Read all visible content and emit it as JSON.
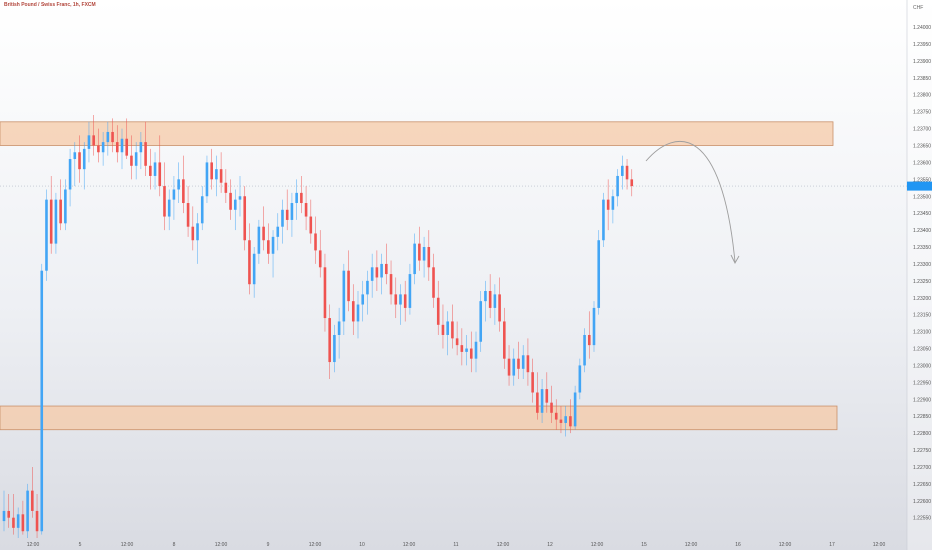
{
  "header": {
    "title": "British Pound / Swiss Franc, 1h, FXCM"
  },
  "chart_data": {
    "type": "candlestick",
    "title": "British Pound / Swiss Franc, 1h, FXCM",
    "currency": "CHF",
    "ylim": [
      1.2249,
      1.2408
    ],
    "y_ticks": [
      1.24,
      1.2395,
      1.239,
      1.2385,
      1.238,
      1.2375,
      1.237,
      1.2365,
      1.236,
      1.2355,
      1.235,
      1.2345,
      1.234,
      1.2335,
      1.233,
      1.2325,
      1.232,
      1.2315,
      1.231,
      1.2305,
      1.23,
      1.2295,
      1.229,
      1.2285,
      1.228,
      1.2275,
      1.227,
      1.2265,
      1.226,
      1.2255,
      1.225
    ],
    "y_tick_labels": [
      "1.24000",
      "1.23950",
      "1.23900",
      "1.23850",
      "1.23800",
      "1.23750",
      "1.23700",
      "1.23650",
      "1.23600",
      "1.23550",
      "1.23500",
      "1.23450",
      "1.23400",
      "1.23350",
      "1.23300",
      "1.23250",
      "1.23200",
      "1.23150",
      "1.23100",
      "1.23050",
      "1.23000",
      "1.22950",
      "1.22900",
      "1.22850",
      "1.22800",
      "1.22750",
      "1.22700",
      "1.22650",
      "1.22600",
      "1.22550",
      "1.22500"
    ],
    "x_labels": [
      "12:00",
      "5",
      "12:00",
      "8",
      "12:00",
      "9",
      "12:00",
      "10",
      "12:00",
      "11",
      "12:00",
      "12",
      "12:00",
      "15",
      "12:00",
      "16",
      "12:00",
      "17",
      "12:00"
    ],
    "current_price": 1.2353,
    "resistance_zone": [
      1.2365,
      1.2372
    ],
    "support_zone": [
      1.2281,
      1.2288
    ],
    "projection": "down",
    "colors": {
      "up": "#42a5f5",
      "down": "#ef5350",
      "zone_fill": "#f6c9a7",
      "zone_border": "#c9906a",
      "price_tag": "#2196f3",
      "projection": "#9e9e9e"
    },
    "candles": [
      [
        1.2254,
        1.2263,
        1.2251,
        1.2257
      ],
      [
        1.2257,
        1.2262,
        1.2252,
        1.2255
      ],
      [
        1.2255,
        1.2262,
        1.225,
        1.2252
      ],
      [
        1.2252,
        1.2258,
        1.2249,
        1.2256
      ],
      [
        1.2256,
        1.226,
        1.225,
        1.2251
      ],
      [
        1.2251,
        1.2265,
        1.2249,
        1.2263
      ],
      [
        1.2263,
        1.227,
        1.2255,
        1.2257
      ],
      [
        1.2257,
        1.2262,
        1.2249,
        1.2251
      ],
      [
        1.2251,
        1.233,
        1.225,
        1.2328
      ],
      [
        1.2328,
        1.2352,
        1.2325,
        1.2349
      ],
      [
        1.2349,
        1.2356,
        1.2333,
        1.2336
      ],
      [
        1.2336,
        1.2351,
        1.2333,
        1.2349
      ],
      [
        1.2349,
        1.2355,
        1.234,
        1.2342
      ],
      [
        1.2342,
        1.2355,
        1.234,
        1.2352
      ],
      [
        1.2352,
        1.2364,
        1.2347,
        1.2361
      ],
      [
        1.2361,
        1.2366,
        1.2353,
        1.2363
      ],
      [
        1.2363,
        1.2368,
        1.2354,
        1.2358
      ],
      [
        1.2358,
        1.2366,
        1.2352,
        1.2364
      ],
      [
        1.2364,
        1.2372,
        1.236,
        1.2368
      ],
      [
        1.2368,
        1.2374,
        1.2362,
        1.2365
      ],
      [
        1.2365,
        1.237,
        1.236,
        1.2363
      ],
      [
        1.2363,
        1.2369,
        1.2359,
        1.2366
      ],
      [
        1.2366,
        1.2372,
        1.2362,
        1.2369
      ],
      [
        1.2369,
        1.2373,
        1.2363,
        1.2366
      ],
      [
        1.2366,
        1.2371,
        1.236,
        1.2363
      ],
      [
        1.2363,
        1.237,
        1.2358,
        1.2367
      ],
      [
        1.2367,
        1.2373,
        1.2361,
        1.2362
      ],
      [
        1.2362,
        1.2368,
        1.2355,
        1.2359
      ],
      [
        1.2359,
        1.2366,
        1.2355,
        1.2363
      ],
      [
        1.2363,
        1.2369,
        1.2358,
        1.2366
      ],
      [
        1.2366,
        1.2372,
        1.2356,
        1.2359
      ],
      [
        1.2359,
        1.2364,
        1.2352,
        1.2356
      ],
      [
        1.2356,
        1.2363,
        1.2352,
        1.236
      ],
      [
        1.236,
        1.2368,
        1.235,
        1.2353
      ],
      [
        1.2353,
        1.236,
        1.234,
        1.2344
      ],
      [
        1.2344,
        1.2352,
        1.234,
        1.2349
      ],
      [
        1.2349,
        1.2356,
        1.2343,
        1.2352
      ],
      [
        1.2352,
        1.236,
        1.2348,
        1.2355
      ],
      [
        1.2355,
        1.2362,
        1.2345,
        1.2348
      ],
      [
        1.2348,
        1.2353,
        1.2338,
        1.2341
      ],
      [
        1.2341,
        1.2347,
        1.2334,
        1.2337
      ],
      [
        1.2337,
        1.2345,
        1.233,
        1.2342
      ],
      [
        1.2342,
        1.2353,
        1.234,
        1.235
      ],
      [
        1.235,
        1.2362,
        1.2348,
        1.236
      ],
      [
        1.236,
        1.2364,
        1.2352,
        1.2355
      ],
      [
        1.2355,
        1.2362,
        1.235,
        1.2358
      ],
      [
        1.2358,
        1.2363,
        1.2351,
        1.2354
      ],
      [
        1.2354,
        1.2358,
        1.2348,
        1.2351
      ],
      [
        1.2351,
        1.2355,
        1.2343,
        1.2346
      ],
      [
        1.2346,
        1.2352,
        1.234,
        1.2349
      ],
      [
        1.2349,
        1.2356,
        1.2344,
        1.235
      ],
      [
        1.235,
        1.2353,
        1.2334,
        1.2337
      ],
      [
        1.2337,
        1.2342,
        1.2321,
        1.2324
      ],
      [
        1.2324,
        1.2335,
        1.232,
        1.2333
      ],
      [
        1.2333,
        1.2343,
        1.233,
        1.2341
      ],
      [
        1.2341,
        1.2347,
        1.2334,
        1.2337
      ],
      [
        1.2337,
        1.2342,
        1.233,
        1.2333
      ],
      [
        1.2333,
        1.234,
        1.2326,
        1.2338
      ],
      [
        1.2338,
        1.2345,
        1.2334,
        1.2341
      ],
      [
        1.2341,
        1.2349,
        1.2336,
        1.2346
      ],
      [
        1.2346,
        1.2352,
        1.234,
        1.2343
      ],
      [
        1.2343,
        1.2351,
        1.2338,
        1.2348
      ],
      [
        1.2348,
        1.2355,
        1.2343,
        1.2351
      ],
      [
        1.2351,
        1.2356,
        1.2345,
        1.2348
      ],
      [
        1.2348,
        1.2353,
        1.234,
        1.2344
      ],
      [
        1.2344,
        1.2349,
        1.2336,
        1.2339
      ],
      [
        1.2339,
        1.2344,
        1.233,
        1.2334
      ],
      [
        1.2334,
        1.234,
        1.2326,
        1.2329
      ],
      [
        1.2329,
        1.2333,
        1.231,
        1.2314
      ],
      [
        1.2314,
        1.2318,
        1.2296,
        1.2301
      ],
      [
        1.2301,
        1.2312,
        1.2298,
        1.2309
      ],
      [
        1.2309,
        1.2317,
        1.2302,
        1.2313
      ],
      [
        1.2313,
        1.233,
        1.2309,
        1.2328
      ],
      [
        1.2328,
        1.2334,
        1.2316,
        1.2319
      ],
      [
        1.2319,
        1.2324,
        1.2309,
        1.2313
      ],
      [
        1.2313,
        1.2322,
        1.2308,
        1.2318
      ],
      [
        1.2318,
        1.2325,
        1.2313,
        1.2321
      ],
      [
        1.2321,
        1.2328,
        1.2315,
        1.2325
      ],
      [
        1.2325,
        1.2333,
        1.232,
        1.2329
      ],
      [
        1.2329,
        1.2334,
        1.2322,
        1.2326
      ],
      [
        1.2326,
        1.2333,
        1.2321,
        1.233
      ],
      [
        1.233,
        1.2336,
        1.2324,
        1.2327
      ],
      [
        1.2327,
        1.2331,
        1.2318,
        1.2321
      ],
      [
        1.2321,
        1.2326,
        1.2314,
        1.2318
      ],
      [
        1.2318,
        1.2324,
        1.2312,
        1.2321
      ],
      [
        1.2321,
        1.2325,
        1.2313,
        1.2317
      ],
      [
        1.2317,
        1.233,
        1.2315,
        1.2327
      ],
      [
        1.2327,
        1.2339,
        1.2324,
        1.2336
      ],
      [
        1.2336,
        1.2341,
        1.2328,
        1.2331
      ],
      [
        1.2331,
        1.2338,
        1.2326,
        1.2335
      ],
      [
        1.2335,
        1.234,
        1.2325,
        1.2329
      ],
      [
        1.2329,
        1.2333,
        1.2317,
        1.232
      ],
      [
        1.232,
        1.2325,
        1.2309,
        1.2312
      ],
      [
        1.2312,
        1.2318,
        1.2305,
        1.2309
      ],
      [
        1.2309,
        1.2316,
        1.2303,
        1.2313
      ],
      [
        1.2313,
        1.2318,
        1.2305,
        1.2308
      ],
      [
        1.2308,
        1.2313,
        1.2303,
        1.2306
      ],
      [
        1.2306,
        1.2311,
        1.23,
        1.2304
      ],
      [
        1.2304,
        1.2309,
        1.23,
        1.2305
      ],
      [
        1.2305,
        1.231,
        1.2298,
        1.2302
      ],
      [
        1.2302,
        1.231,
        1.2298,
        1.2307
      ],
      [
        1.2307,
        1.2322,
        1.2304,
        1.2319
      ],
      [
        1.2319,
        1.2325,
        1.2313,
        1.2322
      ],
      [
        1.2322,
        1.2327,
        1.2314,
        1.2317
      ],
      [
        1.2317,
        1.2324,
        1.2312,
        1.2321
      ],
      [
        1.2321,
        1.2326,
        1.231,
        1.2313
      ],
      [
        1.2313,
        1.2317,
        1.2299,
        1.2302
      ],
      [
        1.2302,
        1.2306,
        1.2294,
        1.2297
      ],
      [
        1.2297,
        1.2305,
        1.2294,
        1.2302
      ],
      [
        1.2302,
        1.2307,
        1.2296,
        1.2299
      ],
      [
        1.2299,
        1.2306,
        1.2296,
        1.2303
      ],
      [
        1.2303,
        1.2308,
        1.2294,
        1.2298
      ],
      [
        1.2298,
        1.2302,
        1.2289,
        1.2292
      ],
      [
        1.2292,
        1.2298,
        1.2284,
        1.2286
      ],
      [
        1.2286,
        1.2296,
        1.2283,
        1.2293
      ],
      [
        1.2293,
        1.2298,
        1.2286,
        1.2289
      ],
      [
        1.2289,
        1.2294,
        1.2283,
        1.2286
      ],
      [
        1.2286,
        1.229,
        1.2281,
        1.2284
      ],
      [
        1.2284,
        1.2288,
        1.228,
        1.2283
      ],
      [
        1.2283,
        1.2288,
        1.2279,
        1.2285
      ],
      [
        1.2285,
        1.229,
        1.228,
        1.2282
      ],
      [
        1.2282,
        1.2294,
        1.2281,
        1.2292
      ],
      [
        1.2292,
        1.2302,
        1.229,
        1.23
      ],
      [
        1.23,
        1.2311,
        1.2298,
        1.2309
      ],
      [
        1.2309,
        1.2316,
        1.2302,
        1.2306
      ],
      [
        1.2306,
        1.2319,
        1.2304,
        1.2317
      ],
      [
        1.2317,
        1.234,
        1.2315,
        1.2337
      ],
      [
        1.2337,
        1.2351,
        1.2335,
        1.2349
      ],
      [
        1.2349,
        1.2355,
        1.234,
        1.2346
      ],
      [
        1.2346,
        1.2352,
        1.2342,
        1.235
      ],
      [
        1.235,
        1.2358,
        1.2347,
        1.2356
      ],
      [
        1.2356,
        1.2362,
        1.2352,
        1.2359
      ],
      [
        1.2359,
        1.2361,
        1.2352,
        1.2355
      ],
      [
        1.2355,
        1.2358,
        1.235,
        1.2353
      ]
    ]
  }
}
